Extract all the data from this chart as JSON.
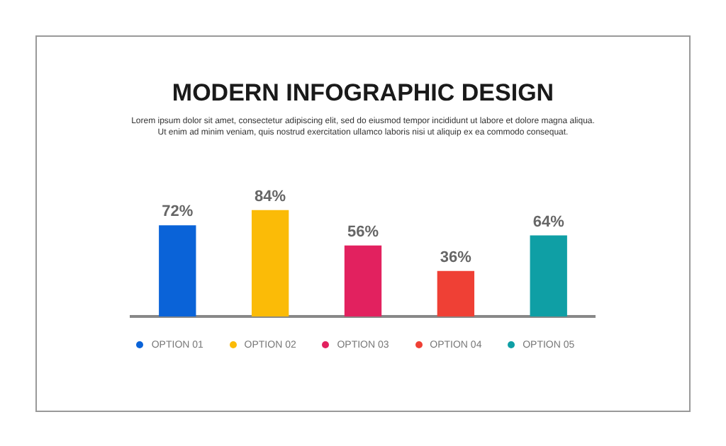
{
  "chart_data": {
    "type": "bar",
    "title": "MODERN INFOGRAPHIC DESIGN",
    "subtitle": "Lorem ipsum dolor sit amet, consectetur adipiscing elit, sed do eiusmod tempor incididunt ut labore et dolore magna aliqua. Ut enim ad minim veniam, quis nostrud exercitation ullamco laboris nisi ut aliquip ex ea commodo consequat.",
    "categories": [
      "OPTION 01",
      "OPTION 02",
      "OPTION 03",
      "OPTION 04",
      "OPTION 05"
    ],
    "values": [
      72,
      84,
      56,
      36,
      64
    ],
    "colors": [
      "#0a63d8",
      "#fbbb07",
      "#e2215f",
      "#ef4035",
      "#0f9fa5"
    ],
    "value_labels": [
      "72%",
      "84%",
      "56%",
      "36%",
      "64%"
    ],
    "grid": false,
    "tick_labels": "x"
  }
}
